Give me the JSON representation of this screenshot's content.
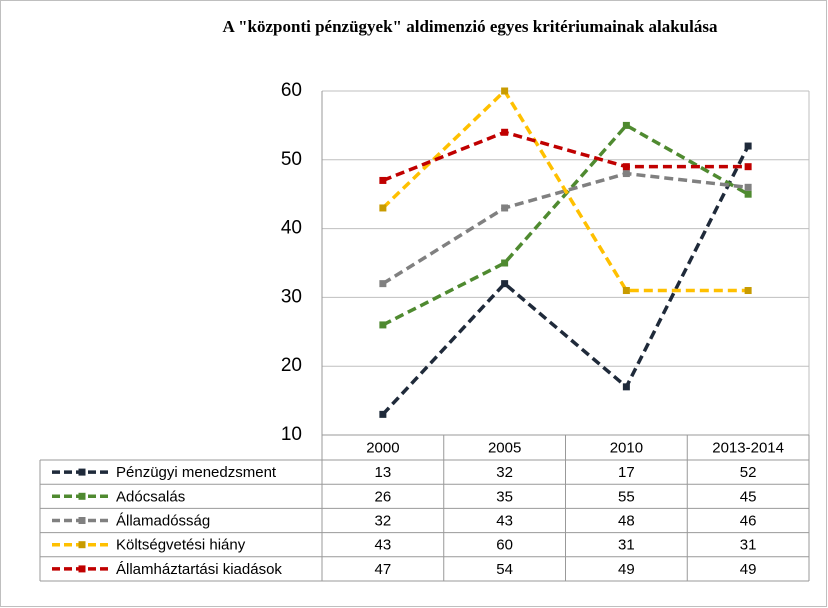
{
  "chart_data": {
    "type": "line",
    "title": "A \"központi pénzügyek\" aldimenzió egyes kritériumainak  alakulása",
    "categories": [
      "2000",
      "2005",
      "2010",
      "2013-2014"
    ],
    "ylim": [
      10,
      60
    ],
    "yticks": [
      10,
      20,
      30,
      40,
      50,
      60
    ],
    "grid": true,
    "series": [
      {
        "name": "Pénzügyi menedzsment",
        "color": "#1f2a3a",
        "values": [
          13,
          32,
          17,
          52
        ]
      },
      {
        "name": "Adócsalás",
        "color": "#4f8a30",
        "values": [
          26,
          35,
          55,
          45
        ]
      },
      {
        "name": "Államadósság",
        "color": "#808080",
        "values": [
          32,
          43,
          48,
          46
        ]
      },
      {
        "name": "Költségvetési hiány",
        "color": "#ffc000",
        "values": [
          43,
          60,
          31,
          31
        ]
      },
      {
        "name": "Államháztartási kiadások",
        "color": "#c00000",
        "values": [
          47,
          54,
          49,
          49
        ]
      }
    ]
  }
}
